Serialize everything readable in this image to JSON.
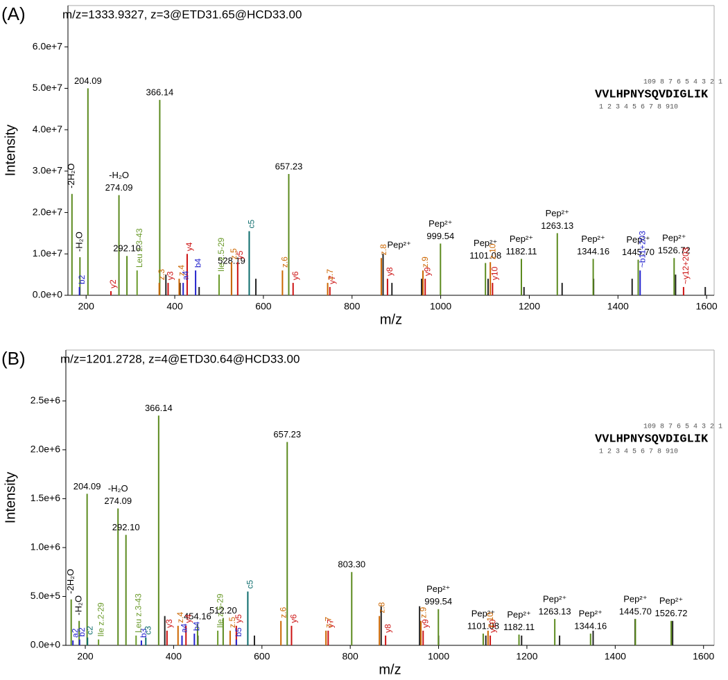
{
  "chart_data": [
    {
      "type": "bar",
      "panel": "(A)",
      "title": "m/z=1333.9327, z=3@ETD31.65@HCD33.00",
      "xlabel": "m/z",
      "ylabel": "Intensity",
      "sequence": "VVLHPNYSQVDIGLIK",
      "ladder_top": "109 8 7 6 5 4 3 2 1",
      "ladder_bottom": "1 2 3 4 5 6 7 8 910",
      "xlim": [
        159,
        1617
      ],
      "xticks": [
        200,
        400,
        600,
        800,
        1000,
        1200,
        1400,
        1600
      ],
      "ylim": [
        0,
        70000000
      ],
      "yticks": [
        {
          "value": 0,
          "label": "0.0e+0"
        },
        {
          "value": 10000000,
          "label": "1.0e+7"
        },
        {
          "value": 20000000,
          "label": "2.0e+7"
        },
        {
          "value": 30000000,
          "label": "3.0e+7"
        },
        {
          "value": 40000000,
          "label": "4.0e+7"
        },
        {
          "value": 50000000,
          "label": "5.0e+7"
        },
        {
          "value": 60000000,
          "label": "6.0e+7"
        }
      ],
      "series": [
        {
          "color": "#222222",
          "x": [
            380,
            412,
            455,
            583,
            870,
            890,
            957,
            1107,
            1188,
            1274,
            1345,
            1432,
            1530,
            1597
          ],
          "values": [
            5000000,
            3000000,
            2000000,
            4000000,
            10000000,
            3000000,
            4000000,
            4000000,
            2000000,
            3000000,
            4000000,
            4000000,
            5000000,
            2000000
          ],
          "labels": [
            null,
            null,
            null,
            null,
            "Pep²⁺",
            null,
            null,
            null,
            null,
            null,
            null,
            null,
            null,
            null
          ]
        },
        {
          "color": "#5b8a1e",
          "glycan": true,
          "x": [
            168.07,
            186.08,
            204.09,
            274.09,
            292.1,
            366.14,
            528.19,
            657.23,
            999.54,
            1101.08,
            1182.11,
            1263.13,
            1344.16,
            1445.7,
            1526.72
          ],
          "values": [
            24500000,
            9200000,
            50000000,
            24200000,
            9500000,
            47200000,
            6500000,
            29300000,
            12500000,
            7800000,
            8800000,
            15000000,
            8800000,
            8600000,
            9000000
          ],
          "labels": [
            null,
            null,
            "204.09",
            "274.09",
            "292.10",
            "366.14",
            "528.19",
            "657.23",
            "999.54",
            "1101.08",
            "1182.11",
            "1263.13",
            "1344.16",
            "1445.70",
            "1526.72"
          ],
          "notes": [
            "-2H₂O",
            "-H₂O",
            null,
            "-H₂O",
            null,
            null,
            null,
            null,
            "Pep²⁺",
            "Pep²⁺",
            "Pep²⁺",
            "Pep²⁺",
            "Pep²⁺",
            "Pep²⁺",
            "Pep²⁺"
          ]
        },
        {
          "color": "#cc1111",
          "x": [
            256,
            385,
            428,
            542,
            667,
            750,
            880,
            965,
            1117,
            1548
          ],
          "values": [
            1000000,
            3000000,
            10000000,
            8000000,
            3000000,
            2000000,
            4000000,
            4000000,
            3000000,
            2000000
          ],
          "labels": [
            "y2",
            "y3",
            "y4",
            "y5",
            "y6",
            "y7",
            "y8",
            "y9",
            "y10",
            "~y12+203"
          ]
        },
        {
          "color": "#cc6600",
          "x": [
            365,
            410,
            528,
            643,
            745,
            866,
            960,
            1112
          ],
          "values": [
            3000000,
            4000000,
            8000000,
            6000000,
            3000000,
            9000000,
            6000000,
            8000000
          ],
          "labels": [
            "z.3",
            "z.4",
            "z.5",
            "z.6",
            "z.7",
            "z.8",
            "z.9",
            "z.10"
          ]
        },
        {
          "color": "#2222cc",
          "x": [
            185,
            419,
            447,
            1450
          ],
          "values": [
            2000000,
            3000000,
            6000000,
            6000000
          ],
          "labels": [
            "b2",
            "a4",
            "b4",
            "~b11+203"
          ]
        },
        {
          "color": "#0b6b6b",
          "x": [
            568
          ],
          "values": [
            15500000
          ],
          "labels": [
            "c5"
          ]
        },
        {
          "color": "#6a9a2a",
          "x": [
            315,
            500
          ],
          "values": [
            6000000,
            5000000
          ],
          "labels": [
            "Leu z.3-43",
            "Ile z.5-29"
          ]
        }
      ]
    },
    {
      "type": "bar",
      "panel": "(B)",
      "title": "m/z=1201.2728, z=4@ETD30.64@HCD33.00",
      "xlabel": "m/z",
      "ylabel": "Intensity",
      "sequence": "VVLHPNYSQVDIGLIK",
      "ladder_top": "109 8 7 6 5 4 3 2 1",
      "ladder_bottom": "1 2 3 4 5 6 7 8 910",
      "xlim": [
        156,
        1624
      ],
      "xticks": [
        200,
        400,
        600,
        800,
        1000,
        1200,
        1400,
        1600
      ],
      "ylim": [
        0,
        3020000
      ],
      "yticks": [
        {
          "value": 0,
          "label": "0.0e+0"
        },
        {
          "value": 500000,
          "label": "5.0e+5"
        },
        {
          "value": 1000000,
          "label": "1.0e+6"
        },
        {
          "value": 1500000,
          "label": "1.5e+6"
        },
        {
          "value": 2000000,
          "label": "2.0e+6"
        },
        {
          "value": 2500000,
          "label": "2.5e+6"
        }
      ],
      "series": [
        {
          "color": "#222222",
          "x": [
            380,
            455,
            583,
            870,
            957,
            1000,
            1107,
            1188,
            1274,
            1350,
            1445,
            1530
          ],
          "values": [
            300000,
            100000,
            100000,
            400000,
            400000,
            100000,
            100000,
            100000,
            100000,
            150000,
            270000,
            250000
          ],
          "labels": [
            null,
            null,
            null,
            null,
            null,
            null,
            null,
            null,
            null,
            null,
            null,
            null
          ]
        },
        {
          "color": "#5b8a1e",
          "glycan": true,
          "x": [
            168.07,
            186.08,
            204.09,
            274.09,
            292.1,
            366.14,
            454.16,
            512.2,
            657.23,
            803.3,
            999.54,
            1101.08,
            1182.11,
            1263.13,
            1344.16,
            1445.7,
            1526.72
          ],
          "values": [
            470000,
            250000,
            1550000,
            1400000,
            1130000,
            2350000,
            220000,
            280000,
            2080000,
            750000,
            370000,
            120000,
            110000,
            270000,
            120000,
            270000,
            250000
          ],
          "labels": [
            null,
            null,
            "204.09",
            "274.09",
            "292.10",
            "366.14",
            "454.16",
            "512.20",
            "657.23",
            "803.30",
            "999.54",
            "1101.08",
            "1182.11",
            "1263.13",
            "1344.16",
            "1445.70",
            "1526.72"
          ],
          "notes": [
            "-2H₂O",
            "-H₂O",
            null,
            "-H₂O",
            null,
            null,
            null,
            null,
            null,
            null,
            "Pep²⁺",
            "Pep²⁺",
            "Pep²⁺",
            "Pep²⁺",
            "Pep²⁺",
            "Pep²⁺",
            "Pep²⁺"
          ]
        },
        {
          "color": "#cc1111",
          "x": [
            385,
            428,
            542,
            667,
            750,
            880,
            965,
            1117
          ],
          "values": [
            150000,
            200000,
            200000,
            200000,
            150000,
            100000,
            150000,
            100000
          ],
          "labels": [
            "y3",
            "y4",
            "y5",
            "y6",
            "y7",
            "y8",
            "y9",
            "y10"
          ]
        },
        {
          "color": "#cc6600",
          "x": [
            410,
            528,
            643,
            745,
            866,
            960,
            1112
          ],
          "values": [
            200000,
            150000,
            250000,
            150000,
            300000,
            250000,
            150000
          ],
          "labels": [
            "z.4",
            "z.5",
            "z.6",
            "z.7",
            "z.8",
            "z.9",
            "z.10"
          ]
        },
        {
          "color": "#2222cc",
          "x": [
            172,
            187,
            327,
            419,
            447,
            542
          ],
          "values": [
            50000,
            60000,
            50000,
            100000,
            120000,
            60000
          ],
          "labels": [
            "a2",
            "b2",
            "b3",
            "a4",
            "b4",
            "b5"
          ]
        },
        {
          "color": "#0b6b6b",
          "x": [
            205,
            337,
            568
          ],
          "values": [
            80000,
            80000,
            550000
          ],
          "labels": [
            "c2",
            "c3",
            "c5"
          ]
        },
        {
          "color": "#6a9a2a",
          "x": [
            230,
            315,
            500
          ],
          "values": [
            60000,
            100000,
            150000
          ],
          "labels": [
            "Ile z.2-29",
            "Leu z.3-43",
            "Ile z.5-29"
          ]
        }
      ]
    }
  ]
}
